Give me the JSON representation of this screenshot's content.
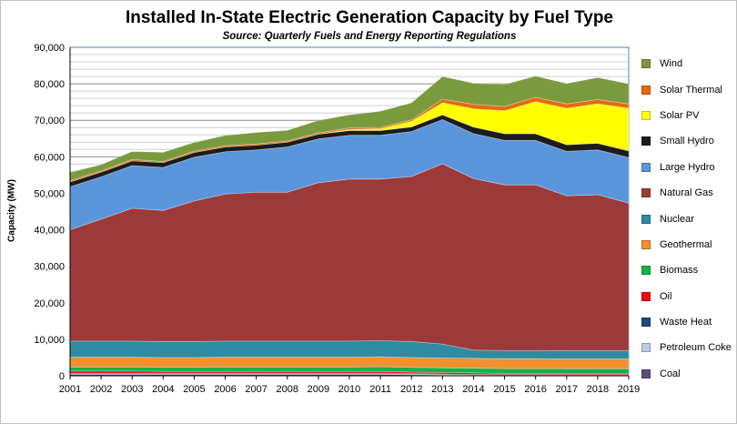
{
  "chart_data": {
    "type": "area",
    "stacked": true,
    "title": "Installed In-State Electric Generation Capacity by Fuel Type",
    "subtitle": "Source: Quarterly Fuels and Energy Reporting Regulations",
    "ylabel": "Capacity (MW)",
    "xlabel": "",
    "ylim": [
      0,
      90000
    ],
    "yticks": [
      "0",
      "10,000",
      "20,000",
      "30,000",
      "40,000",
      "50,000",
      "60,000",
      "70,000",
      "80,000",
      "90,000"
    ],
    "grid": true,
    "legend_position": "right",
    "categories": [
      "2001",
      "2002",
      "2003",
      "2004",
      "2005",
      "2006",
      "2007",
      "2008",
      "2009",
      "2010",
      "2011",
      "2012",
      "2013",
      "2014",
      "2015",
      "2016",
      "2017",
      "2018",
      "2019"
    ],
    "series": [
      {
        "name": "Coal",
        "color": "#604a7b",
        "values": [
          400,
          400,
          400,
          400,
          400,
          400,
          400,
          400,
          400,
          400,
          400,
          300,
          200,
          100,
          60,
          60,
          50,
          50,
          50
        ]
      },
      {
        "name": "Petroleum Coke",
        "color": "#b9cde5",
        "values": [
          100,
          100,
          100,
          100,
          100,
          100,
          100,
          100,
          100,
          100,
          100,
          100,
          100,
          100,
          100,
          100,
          100,
          100,
          100
        ]
      },
      {
        "name": "Waste Heat",
        "color": "#1f497d",
        "values": [
          200,
          200,
          200,
          200,
          200,
          200,
          200,
          200,
          200,
          200,
          200,
          200,
          200,
          200,
          200,
          200,
          200,
          200,
          200
        ]
      },
      {
        "name": "Oil",
        "color": "#e81010",
        "values": [
          600,
          600,
          600,
          500,
          500,
          500,
          500,
          500,
          500,
          500,
          500,
          400,
          400,
          400,
          300,
          300,
          300,
          300,
          300
        ]
      },
      {
        "name": "Biomass",
        "color": "#16b04a",
        "values": [
          1100,
          1100,
          1100,
          1100,
          1100,
          1200,
          1200,
          1200,
          1200,
          1200,
          1300,
          1300,
          1300,
          1300,
          1300,
          1300,
          1300,
          1300,
          1300
        ]
      },
      {
        "name": "Geothermal",
        "color": "#f0902e",
        "values": [
          2700,
          2700,
          2700,
          2700,
          2700,
          2700,
          2700,
          2700,
          2700,
          2700,
          2700,
          2700,
          2700,
          2700,
          2700,
          2700,
          2700,
          2700,
          2700
        ]
      },
      {
        "name": "Nuclear",
        "color": "#2f8aa3",
        "values": [
          4400,
          4400,
          4400,
          4400,
          4400,
          4400,
          4400,
          4400,
          4400,
          4400,
          4400,
          4400,
          3800,
          2250,
          2250,
          2250,
          2250,
          2250,
          2250
        ]
      },
      {
        "name": "Natural Gas",
        "color": "#9c3a3a",
        "values": [
          30500,
          33400,
          36400,
          35900,
          38500,
          40300,
          40800,
          40800,
          43400,
          44400,
          44300,
          45200,
          49400,
          47000,
          45400,
          45400,
          42400,
          42700,
          40400
        ]
      },
      {
        "name": "Large Hydro",
        "color": "#5b96dc",
        "values": [
          11800,
          11600,
          11700,
          11800,
          12000,
          11600,
          11600,
          12400,
          12000,
          12000,
          12000,
          12300,
          12100,
          12300,
          12200,
          12200,
          12200,
          12300,
          12500
        ]
      },
      {
        "name": "Small Hydro",
        "color": "#1c1c1c",
        "values": [
          1300,
          1300,
          1300,
          1300,
          1300,
          1300,
          1300,
          1300,
          1300,
          1300,
          1300,
          1300,
          1300,
          1800,
          1800,
          1800,
          1800,
          1800,
          1800
        ]
      },
      {
        "name": "Solar PV",
        "color": "#ffff00",
        "values": [
          0,
          0,
          0,
          0,
          0,
          0,
          0,
          0,
          0,
          300,
          500,
          1500,
          3300,
          5000,
          6300,
          8800,
          10000,
          10800,
          11700
        ]
      },
      {
        "name": "Solar Thermal",
        "color": "#e46c0a",
        "values": [
          350,
          350,
          350,
          350,
          350,
          350,
          350,
          350,
          350,
          400,
          400,
          400,
          1000,
          1200,
          1200,
          1200,
          1200,
          1200,
          1200
        ]
      },
      {
        "name": "Wind",
        "color": "#7a9a3e",
        "values": [
          2300,
          1700,
          2200,
          2500,
          2400,
          2800,
          3100,
          2900,
          3400,
          3600,
          4400,
          4700,
          6200,
          5800,
          6000,
          5800,
          5600,
          6000,
          5500
        ]
      }
    ]
  }
}
